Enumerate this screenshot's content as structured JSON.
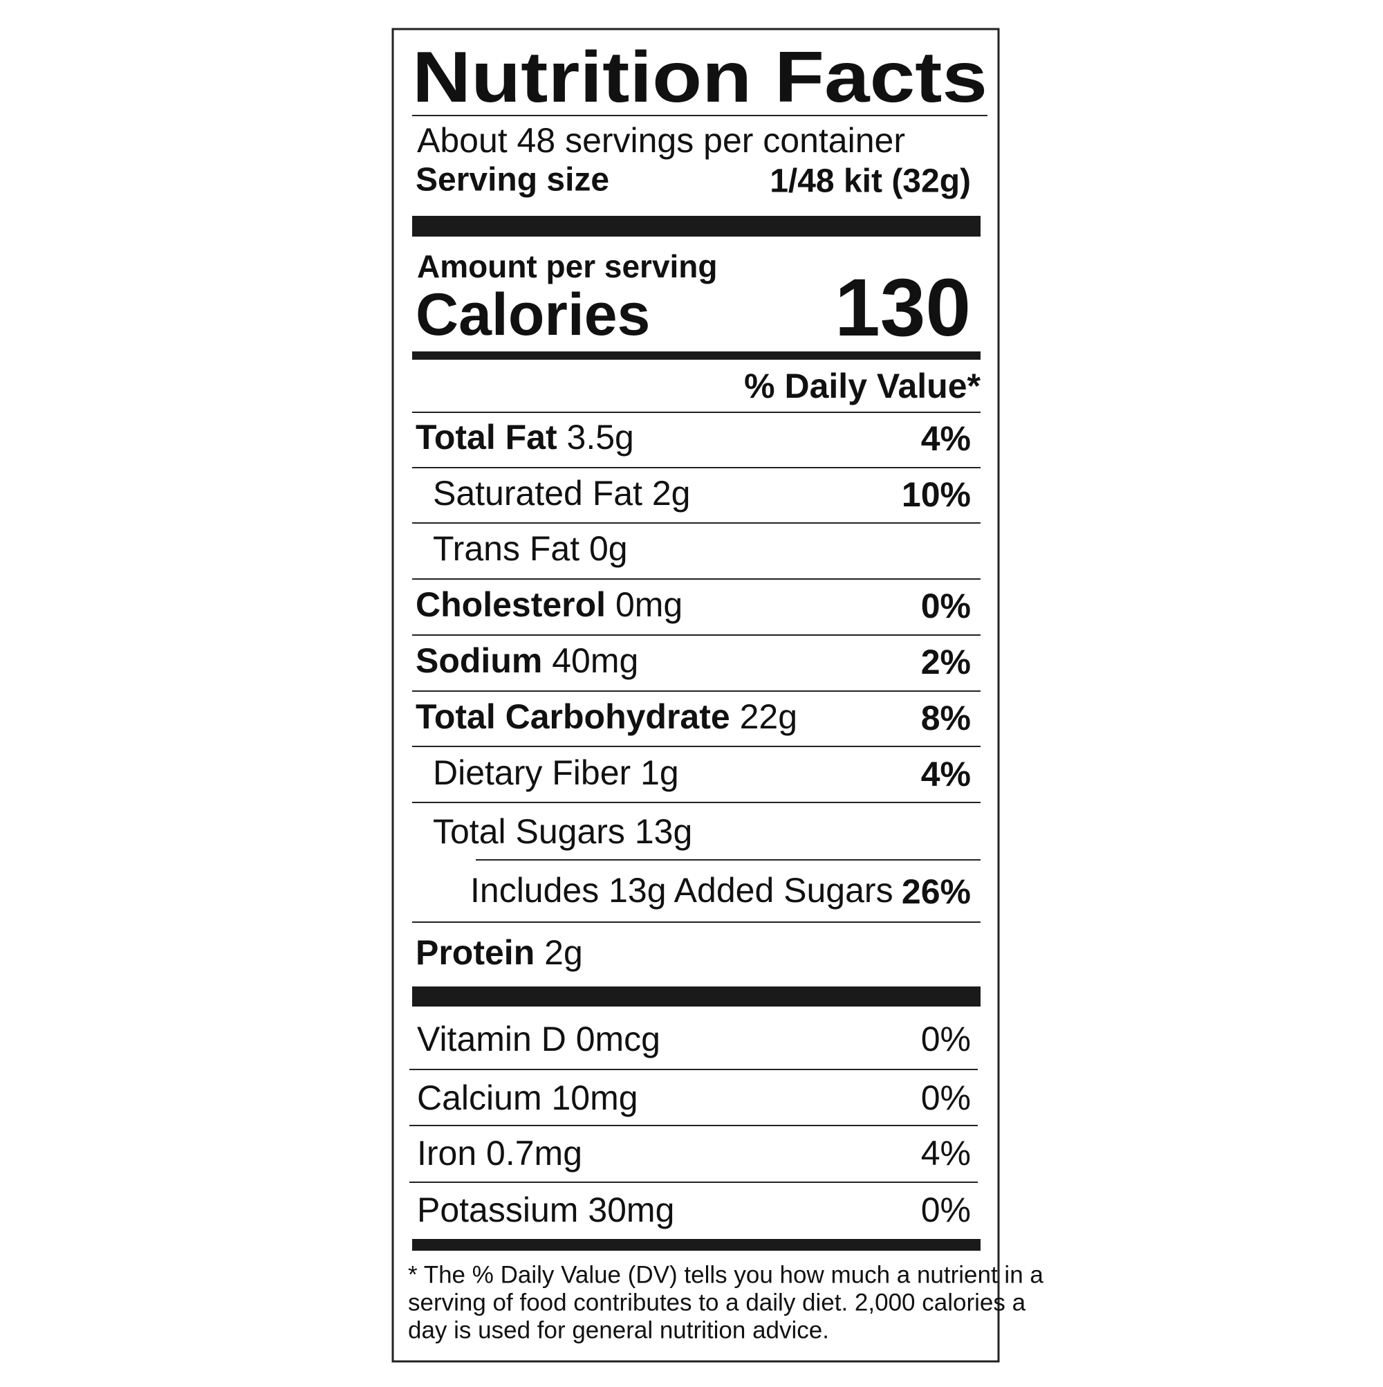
{
  "title": "Nutrition Facts",
  "servings": "About 48 servings per container",
  "serving_size": {
    "label": "Serving size",
    "value": "1/48 kit (32g)"
  },
  "amount_per_serving": "Amount per serving",
  "calories": {
    "label": "Calories",
    "value": 130
  },
  "daily_value_header": "% Daily Value*",
  "nutrients": [
    {
      "name": "Total Fat",
      "amount": "3.5g",
      "dv": "4%"
    },
    {
      "name": "Saturated Fat",
      "amount": "2g",
      "dv": "10%"
    },
    {
      "name": "Trans Fat",
      "amount": "0g"
    },
    {
      "name": "Cholesterol",
      "amount": "0mg",
      "dv": "0%"
    },
    {
      "name": "Sodium",
      "amount": "40mg",
      "dv": "2%"
    },
    {
      "name": "Total Carbohydrate",
      "amount": "22g",
      "dv": "8%"
    },
    {
      "name": "Dietary Fiber",
      "amount": "1g",
      "dv": "4%"
    },
    {
      "name": "Total Sugars",
      "amount": "13g"
    },
    {
      "name": "Includes 13g Added Sugars",
      "dv": "26%"
    },
    {
      "name": "Protein",
      "amount": "2g"
    }
  ],
  "vitamins": [
    {
      "name": "Vitamin D 0mcg",
      "dv": "0%"
    },
    {
      "name": "Calcium 10mg",
      "dv": "0%"
    },
    {
      "name": "Iron 0.7mg",
      "dv": "4%"
    },
    {
      "name": "Potassium 30mg",
      "dv": "0%"
    }
  ],
  "footnote": [
    "* The % Daily Value (DV) tells you how much a nutrient in a",
    "serving of food contributes to a daily diet. 2,000 calories a",
    "day is used for general nutrition advice."
  ]
}
